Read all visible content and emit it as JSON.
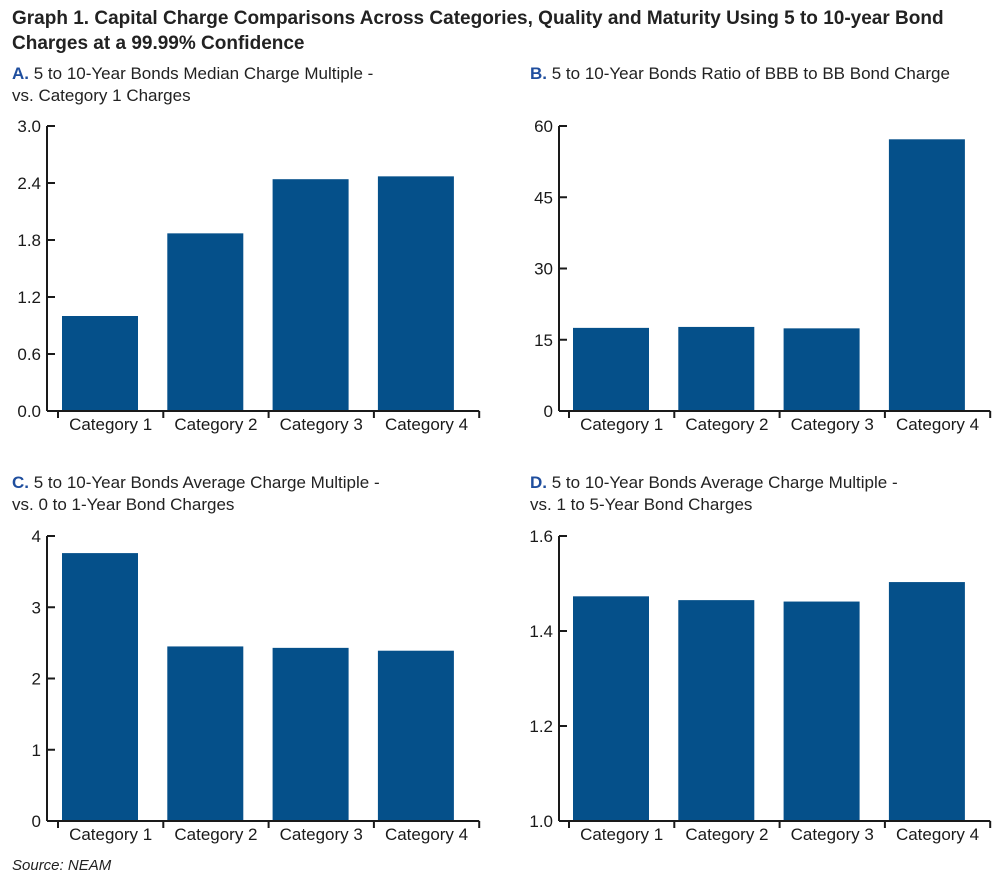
{
  "title": "Graph 1. Capital Charge Comparisons Across Categories, Quality and Maturity Using 5 to 10-year Bond Charges at a 99.99% Confidence",
  "source": "Source: NEAM",
  "colors": {
    "bar": "#05508a",
    "axis": "#1a1a1a",
    "letter": "#1f4e9e"
  },
  "panels": {
    "a": {
      "letter": "A.",
      "title_line1": "5 to 10-Year Bonds Median Charge Multiple -",
      "title_line2": "vs. Category 1 Charges"
    },
    "b": {
      "letter": "B.",
      "title_line1": "5 to 10-Year Bonds Ratio of BBB to BB Bond Charge",
      "title_line2": ""
    },
    "c": {
      "letter": "C.",
      "title_line1": "5 to 10-Year Bonds Average Charge Multiple -",
      "title_line2": "vs. 0 to 1-Year Bond Charges"
    },
    "d": {
      "letter": "D.",
      "title_line1": "5 to 10-Year Bonds Average Charge Multiple -",
      "title_line2": "vs. 1 to 5-Year Bond Charges"
    }
  },
  "chart_data": [
    {
      "id": "a",
      "type": "bar",
      "categories": [
        "Category 1",
        "Category 2",
        "Category 3",
        "Category 4"
      ],
      "values": [
        1.0,
        1.87,
        2.44,
        2.47
      ],
      "ylim": [
        0,
        3.0
      ],
      "yticks": [
        0,
        0.6,
        1.2,
        1.8,
        2.4,
        3.0
      ],
      "ytick_labels": [
        "0.0",
        "0.6",
        "1.2",
        "1.8",
        "2.4",
        "3.0"
      ]
    },
    {
      "id": "b",
      "type": "bar",
      "categories": [
        "Category 1",
        "Category 2",
        "Category 3",
        "Category 4"
      ],
      "values": [
        17.5,
        17.7,
        17.4,
        57.2
      ],
      "ylim": [
        0,
        60
      ],
      "yticks": [
        0,
        15,
        30,
        45,
        60
      ],
      "ytick_labels": [
        "0",
        "15",
        "30",
        "45",
        "60"
      ]
    },
    {
      "id": "c",
      "type": "bar",
      "categories": [
        "Category 1",
        "Category 2",
        "Category 3",
        "Category 4"
      ],
      "values": [
        3.76,
        2.45,
        2.43,
        2.39
      ],
      "ylim": [
        0,
        4
      ],
      "yticks": [
        0,
        1,
        2,
        3,
        4
      ],
      "ytick_labels": [
        "0",
        "1",
        "2",
        "3",
        "4"
      ]
    },
    {
      "id": "d",
      "type": "bar",
      "categories": [
        "Category 1",
        "Category 2",
        "Category 3",
        "Category 4"
      ],
      "values": [
        1.473,
        1.465,
        1.462,
        1.503
      ],
      "ylim": [
        1.0,
        1.6
      ],
      "yticks": [
        1.0,
        1.2,
        1.4,
        1.6
      ],
      "ytick_labels": [
        "1.0",
        "1.2",
        "1.4",
        "1.6"
      ]
    }
  ]
}
